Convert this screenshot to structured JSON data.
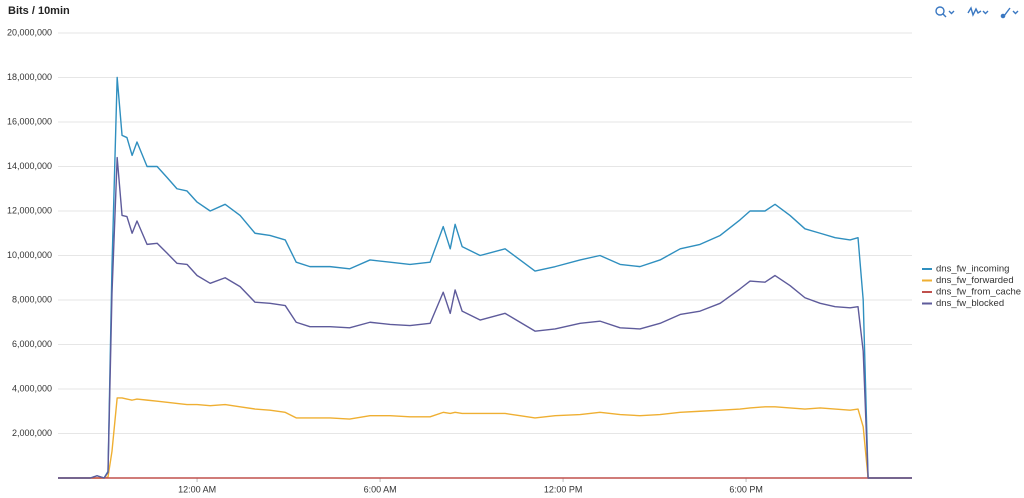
{
  "chart_data": {
    "type": "line",
    "title": "Bits / 10min",
    "x": [
      -4.56,
      -3.5,
      -3.28,
      -3.05,
      -2.92,
      -2.79,
      -2.62,
      -2.46,
      -2.3,
      -2.13,
      -1.97,
      -1.64,
      -1.31,
      -0.98,
      -0.66,
      -0.33,
      0,
      0.43,
      0.92,
      1.41,
      1.9,
      2.39,
      2.89,
      3.25,
      3.7,
      4.36,
      5.0,
      5.67,
      6.33,
      6.98,
      7.64,
      8.07,
      8.3,
      8.46,
      8.69,
      9.28,
      10.1,
      10.59,
      11.08,
      11.74,
      12.56,
      13.21,
      13.87,
      14.52,
      15.18,
      15.84,
      16.49,
      17.15,
      17.8,
      18.13,
      18.62,
      18.95,
      19.44,
      19.93,
      20.43,
      20.92,
      21.41,
      21.67,
      21.84,
      22.0,
      23.44
    ],
    "series": [
      {
        "name": "dns_fw_incoming",
        "color": "#2f8fbf",
        "values": [
          0,
          0,
          100000,
          0,
          300000,
          9500000,
          18000000,
          15400000,
          15300000,
          14500000,
          15100000,
          14000000,
          14000000,
          13500000,
          13000000,
          12900000,
          12400000,
          12000000,
          12300000,
          11800000,
          11000000,
          10900000,
          10700000,
          9700000,
          9500000,
          9500000,
          9400000,
          9800000,
          9700000,
          9600000,
          9700000,
          11300000,
          10300000,
          11400000,
          10400000,
          10000000,
          10300000,
          9800000,
          9300000,
          9500000,
          9800000,
          10000000,
          9600000,
          9500000,
          9800000,
          10300000,
          10500000,
          10900000,
          11600000,
          12000000,
          12000000,
          12300000,
          11800000,
          11200000,
          11000000,
          10800000,
          10700000,
          10800000,
          8000000,
          0,
          0
        ]
      },
      {
        "name": "dns_fw_forwarded",
        "color": "#efaf32",
        "values": [
          0,
          0,
          0,
          0,
          50000,
          1200000,
          3600000,
          3600000,
          3550000,
          3500000,
          3550000,
          3500000,
          3450000,
          3400000,
          3350000,
          3300000,
          3300000,
          3250000,
          3300000,
          3200000,
          3100000,
          3050000,
          2950000,
          2700000,
          2700000,
          2700000,
          2650000,
          2800000,
          2800000,
          2750000,
          2750000,
          2950000,
          2900000,
          2950000,
          2900000,
          2900000,
          2900000,
          2800000,
          2700000,
          2800000,
          2850000,
          2950000,
          2850000,
          2800000,
          2850000,
          2950000,
          3000000,
          3050000,
          3100000,
          3150000,
          3200000,
          3200000,
          3150000,
          3100000,
          3150000,
          3100000,
          3050000,
          3100000,
          2300000,
          0,
          0
        ]
      },
      {
        "name": "dns_fw_from_cache",
        "color": "#c0504d",
        "values": [
          0,
          0,
          0,
          0,
          0,
          0,
          0,
          0,
          0,
          0,
          0,
          0,
          0,
          0,
          0,
          0,
          0,
          0,
          0,
          0,
          0,
          0,
          0,
          0,
          0,
          0,
          0,
          0,
          0,
          0,
          0,
          0,
          0,
          0,
          0,
          0,
          0,
          0,
          0,
          0,
          0,
          0,
          0,
          0,
          0,
          0,
          0,
          0,
          0,
          0,
          0,
          0,
          0,
          0,
          0,
          0,
          0,
          0,
          0,
          0,
          0
        ]
      },
      {
        "name": "dns_fw_blocked",
        "color": "#5e5b9b",
        "values": [
          0,
          0,
          100000,
          0,
          250000,
          8300000,
          14400000,
          11800000,
          11750000,
          11000000,
          11550000,
          10500000,
          10550000,
          10100000,
          9650000,
          9600000,
          9100000,
          8750000,
          9000000,
          8600000,
          7900000,
          7850000,
          7750000,
          7000000,
          6800000,
          6800000,
          6750000,
          7000000,
          6900000,
          6850000,
          6950000,
          8350000,
          7400000,
          8450000,
          7500000,
          7100000,
          7400000,
          7000000,
          6600000,
          6700000,
          6950000,
          7050000,
          6750000,
          6700000,
          6950000,
          7350000,
          7500000,
          7850000,
          8500000,
          8850000,
          8800000,
          9100000,
          8650000,
          8100000,
          7850000,
          7700000,
          7650000,
          7700000,
          5700000,
          0,
          0
        ]
      }
    ],
    "xlim": [
      -4.56,
      23.44
    ],
    "xticks": [
      {
        "value": 0,
        "label": "12:00 AM"
      },
      {
        "value": 6,
        "label": "6:00 AM"
      },
      {
        "value": 12,
        "label": "12:00 PM"
      },
      {
        "value": 18,
        "label": "6:00 PM"
      }
    ],
    "ylim": [
      0,
      20000000
    ],
    "yticks": [
      {
        "value": 2000000,
        "label": "2,000,000"
      },
      {
        "value": 4000000,
        "label": "4,000,000"
      },
      {
        "value": 6000000,
        "label": "6,000,000"
      },
      {
        "value": 8000000,
        "label": "8,000,000"
      },
      {
        "value": 10000000,
        "label": "10,000,000"
      },
      {
        "value": 12000000,
        "label": "12,000,000"
      },
      {
        "value": 14000000,
        "label": "14,000,000"
      },
      {
        "value": 16000000,
        "label": "16,000,000"
      },
      {
        "value": 18000000,
        "label": "18,000,000"
      },
      {
        "value": 20000000,
        "label": "20,000,000"
      }
    ],
    "grid": true,
    "legend": "right"
  }
}
